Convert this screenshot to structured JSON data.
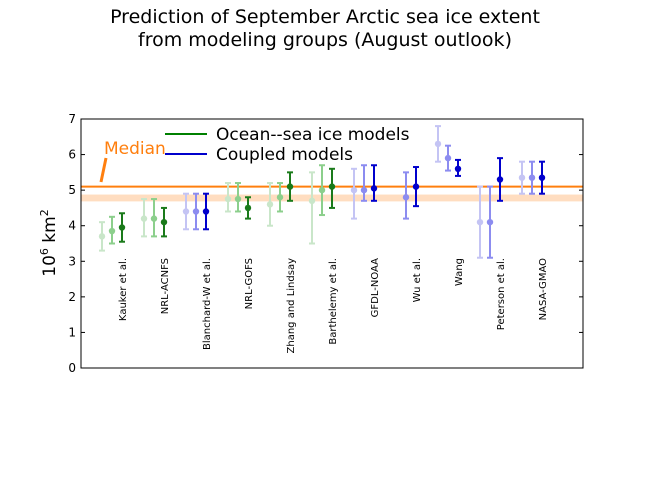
{
  "chart_data": {
    "type": "scatter",
    "title_lines": [
      "Prediction of September Arctic sea ice extent",
      "from modeling groups (August outlook)"
    ],
    "ylabel": "10^6 km^2",
    "ylabel_base": "10",
    "ylabel_exp": "6",
    "ylabel_unit": "km",
    "ylabel_unit_exp": "2",
    "ylim": [
      0,
      7
    ],
    "yticks": [
      "0",
      "1",
      "2",
      "3",
      "4",
      "5",
      "6",
      "7"
    ],
    "median": {
      "label": "Median",
      "value": 5.1,
      "color": "#ff7f0e"
    },
    "observed_band": {
      "low": 4.74,
      "high": 4.82,
      "color": "#ffd7b5"
    },
    "legend": [
      {
        "label": "Ocean--sea ice models",
        "color": "#008000"
      },
      {
        "label": "Coupled models",
        "color": "#0000cc"
      }
    ],
    "colors": {
      "ocean": [
        "#c9e6c9",
        "#8ccf8c",
        "#1a7a1a"
      ],
      "coupled": [
        "#c4c4f4",
        "#8c8cf0",
        "#0000cc"
      ]
    },
    "groups": [
      {
        "name": "Kauker et al.",
        "type": "ocean",
        "points": [
          {
            "value": 3.7,
            "low": 3.3,
            "high": 4.1
          },
          {
            "value": 3.85,
            "low": 3.5,
            "high": 4.25
          },
          {
            "value": 3.95,
            "low": 3.55,
            "high": 4.35
          }
        ]
      },
      {
        "name": "NRL-ACNFS",
        "type": "ocean",
        "points": [
          {
            "value": 4.2,
            "low": 3.7,
            "high": 4.75
          },
          {
            "value": 4.2,
            "low": 3.7,
            "high": 4.75
          },
          {
            "value": 4.1,
            "low": 3.7,
            "high": 4.5
          }
        ]
      },
      {
        "name": "Blanchard-W et al.",
        "type": "coupled",
        "points": [
          {
            "value": 4.4,
            "low": 3.9,
            "high": 4.9
          },
          {
            "value": 4.4,
            "low": 3.9,
            "high": 4.9
          },
          {
            "value": 4.4,
            "low": 3.9,
            "high": 4.9
          }
        ]
      },
      {
        "name": "NRL-GOFS",
        "type": "ocean",
        "points": [
          {
            "value": 4.75,
            "low": 4.4,
            "high": 5.2
          },
          {
            "value": 4.75,
            "low": 4.4,
            "high": 5.2
          },
          {
            "value": 4.5,
            "low": 4.2,
            "high": 4.8
          }
        ]
      },
      {
        "name": "Zhang and Lindsay",
        "type": "ocean",
        "points": [
          {
            "value": 4.6,
            "low": 4.0,
            "high": 5.2
          },
          {
            "value": 4.8,
            "low": 4.4,
            "high": 5.2
          },
          {
            "value": 5.1,
            "low": 4.7,
            "high": 5.5
          }
        ]
      },
      {
        "name": "Barthelemy et al.",
        "type": "ocean",
        "points": [
          {
            "value": 4.7,
            "low": 3.5,
            "high": 5.5
          },
          {
            "value": 5.0,
            "low": 4.3,
            "high": 5.7
          },
          {
            "value": 5.1,
            "low": 4.5,
            "high": 5.6
          }
        ]
      },
      {
        "name": "GFDL-NOAA",
        "type": "coupled",
        "points": [
          {
            "value": 5.0,
            "low": 4.2,
            "high": 5.6
          },
          {
            "value": 5.0,
            "low": 4.7,
            "high": 5.7
          },
          {
            "value": 5.05,
            "low": 4.7,
            "high": 5.7
          }
        ]
      },
      {
        "name": "Wu et al.",
        "type": "coupled",
        "points": [
          {
            "value": 4.8,
            "low": 4.2,
            "high": 5.5
          },
          {
            "value": 5.1,
            "low": 4.55,
            "high": 5.65
          }
        ]
      },
      {
        "name": "Wang",
        "type": "coupled",
        "points": [
          {
            "value": 6.3,
            "low": 5.8,
            "high": 6.8
          },
          {
            "value": 5.9,
            "low": 5.55,
            "high": 6.25
          },
          {
            "value": 5.6,
            "low": 5.4,
            "high": 5.85
          }
        ]
      },
      {
        "name": "Peterson et al.",
        "type": "coupled",
        "points": [
          {
            "value": 4.1,
            "low": 3.1,
            "high": 5.1
          },
          {
            "value": 4.1,
            "low": 3.1,
            "high": 5.1
          },
          {
            "value": 5.3,
            "low": 4.7,
            "high": 5.9
          }
        ]
      },
      {
        "name": "NASA-GMAO",
        "type": "coupled",
        "points": [
          {
            "value": 5.35,
            "low": 4.9,
            "high": 5.8
          },
          {
            "value": 5.35,
            "low": 4.9,
            "high": 5.8
          },
          {
            "value": 5.35,
            "low": 4.9,
            "high": 5.8
          }
        ]
      }
    ]
  }
}
